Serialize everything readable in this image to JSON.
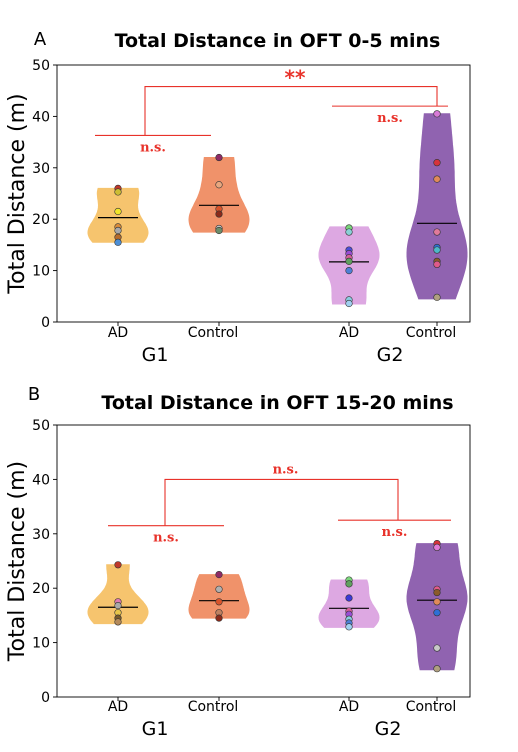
{
  "chart_data": [
    {
      "panel_label": "A",
      "title": "Total Distance in OFT 0-5 mins",
      "type": "violin",
      "ylabel": "Total Distance (m)",
      "ylim": [
        0,
        50
      ],
      "yticks": [
        "0",
        "10",
        "20",
        "30",
        "40",
        "50"
      ],
      "categories": [
        "AD",
        "Control",
        "AD",
        "Control"
      ],
      "groups": [
        "G1",
        "G2"
      ],
      "violins": [
        {
          "label": "AD",
          "group": "G1",
          "color": "#f6c46e",
          "min": 15.5,
          "max": 26,
          "median": 20.3,
          "points": [
            26,
            25.3,
            21.5,
            18.5,
            17.8,
            16.5,
            15.5
          ],
          "point_colors": [
            "#c0392b",
            "#cdbd34",
            "#f2e628",
            "#d98c3a",
            "#a9a9a9",
            "#b56b2c",
            "#4d8fd6"
          ]
        },
        {
          "label": "Control",
          "group": "G1",
          "color": "#f0926a",
          "min": 17.5,
          "max": 32,
          "median": 22.7,
          "points": [
            32,
            26.7,
            22,
            21,
            18.2,
            17.8
          ],
          "point_colors": [
            "#8e2a66",
            "#e8a77f",
            "#d9542b",
            "#8b2a1a",
            "#c8c8c8",
            "#6b8e6b"
          ]
        },
        {
          "label": "AD",
          "group": "G2",
          "color": "#dda8e2",
          "min": 3.5,
          "max": 18.5,
          "median": 11.7,
          "points": [
            18.3,
            17.5,
            14,
            13.3,
            12.5,
            11.8,
            10,
            4.3,
            3.6
          ],
          "point_colors": [
            "#7cd67c",
            "#8ad0d6",
            "#4d4dd6",
            "#9a4dd6",
            "#d6609a",
            "#60a060",
            "#4d7fd6",
            "#8acde0",
            "#a0d0f0"
          ]
        },
        {
          "label": "Control",
          "group": "G2",
          "color": "#9063b0",
          "min": 4.5,
          "max": 40.5,
          "median": 19.2,
          "points": [
            40.5,
            31,
            27.8,
            17.5,
            14.5,
            14,
            11.8,
            11.2,
            4.8
          ],
          "point_colors": [
            "#d77ad6",
            "#d6333a",
            "#e08a5a",
            "#e07a9a",
            "#2f6fd6",
            "#4db8c8",
            "#8b5a2b",
            "#e05a8a",
            "#b0a080"
          ]
        }
      ],
      "comparisons": [
        {
          "between": "G1 AD vs G1 Control",
          "label": "n.s."
        },
        {
          "between": "G2 AD vs G2 Control",
          "label": "n.s."
        },
        {
          "between": "G1 vs G2",
          "label": "**"
        }
      ]
    },
    {
      "panel_label": "B",
      "title": "Total Distance in OFT 15-20 mins",
      "type": "violin",
      "ylabel": "Total Distance (m)",
      "ylim": [
        0,
        50
      ],
      "yticks": [
        "0",
        "10",
        "20",
        "30",
        "40",
        "50"
      ],
      "categories": [
        "AD",
        "Control",
        "AD",
        "Control"
      ],
      "groups": [
        "G1",
        "G2"
      ],
      "violins": [
        {
          "label": "AD",
          "group": "G1",
          "color": "#f6c46e",
          "min": 13.5,
          "max": 24.3,
          "median": 16.5,
          "points": [
            24.3,
            17.5,
            16.8,
            15.5,
            14.5,
            13.8
          ],
          "point_colors": [
            "#c0392b",
            "#e07ab0",
            "#a9a9a9",
            "#e8c54a",
            "#7a5a2a",
            "#b58a5a"
          ]
        },
        {
          "label": "Control",
          "group": "G1",
          "color": "#f0926a",
          "min": 14.5,
          "max": 22.5,
          "median": 17.7,
          "points": [
            22.5,
            19.8,
            17.5,
            15.5,
            14.5
          ],
          "point_colors": [
            "#8e2a66",
            "#b0b0b0",
            "#d9542b",
            "#c08060",
            "#8b2a1a"
          ]
        },
        {
          "label": "AD",
          "group": "G2",
          "color": "#dda8e2",
          "min": 12.8,
          "max": 21.5,
          "median": 16.3,
          "points": [
            21.5,
            20.8,
            18.2,
            15.8,
            15.2,
            14.3,
            13.6,
            12.9
          ],
          "point_colors": [
            "#7cd67c",
            "#60a060",
            "#3a3ad6",
            "#d6609a",
            "#9a4dd6",
            "#8acde0",
            "#4d7fd6",
            "#a0d0f0"
          ]
        },
        {
          "label": "Control",
          "group": "G2",
          "color": "#9063b0",
          "min": 5,
          "max": 28.2,
          "median": 17.8,
          "points": [
            28.2,
            27.5,
            19.8,
            19.2,
            17.5,
            15.5,
            9,
            5.2
          ],
          "point_colors": [
            "#d6333a",
            "#e07ad6",
            "#e05a8a",
            "#8b5a2b",
            "#e08a5a",
            "#2f6fd6",
            "#c8c8c8",
            "#b0a080"
          ]
        }
      ],
      "comparisons": [
        {
          "between": "G1 AD vs G1 Control",
          "label": "n.s."
        },
        {
          "between": "G2 AD vs G2 Control",
          "label": "n.s."
        },
        {
          "between": "G1 vs G2",
          "label": "n.s."
        }
      ]
    }
  ]
}
